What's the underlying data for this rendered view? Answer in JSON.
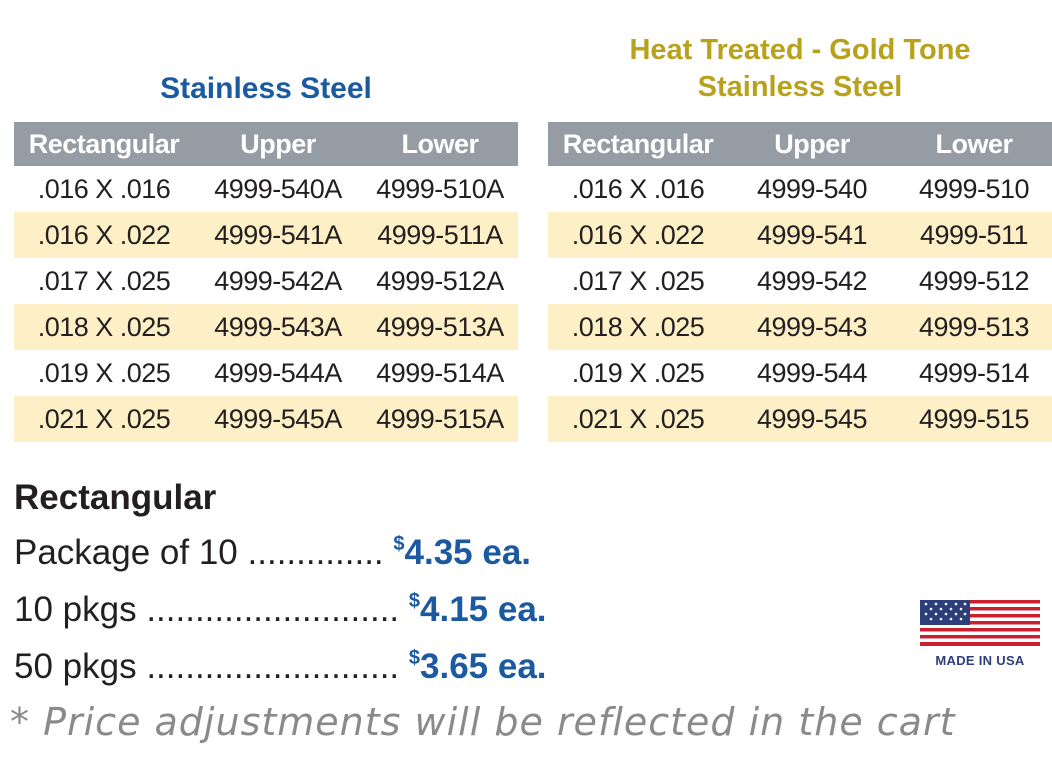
{
  "left_section": {
    "title": "Stainless Steel",
    "headers": [
      "Rectangular",
      "Upper",
      "Lower"
    ],
    "rows": [
      [
        ".016 X .016",
        "4999-540A",
        "4999-510A"
      ],
      [
        ".016 X .022",
        "4999-541A",
        "4999-511A"
      ],
      [
        ".017 X .025",
        "4999-542A",
        "4999-512A"
      ],
      [
        ".018 X .025",
        "4999-543A",
        "4999-513A"
      ],
      [
        ".019 X .025",
        "4999-544A",
        "4999-514A"
      ],
      [
        ".021 X .025",
        "4999-545A",
        "4999-515A"
      ]
    ]
  },
  "right_section": {
    "title_line1": "Heat Treated - Gold Tone",
    "title_line2": "Stainless Steel",
    "headers": [
      "Rectangular",
      "Upper",
      "Lower"
    ],
    "rows": [
      [
        ".016 X .016",
        "4999-540",
        "4999-510"
      ],
      [
        ".016 X .022",
        "4999-541",
        "4999-511"
      ],
      [
        ".017 X .025",
        "4999-542",
        "4999-512"
      ],
      [
        ".018 X .025",
        "4999-543",
        "4999-513"
      ],
      [
        ".019 X .025",
        "4999-544",
        "4999-514"
      ],
      [
        ".021 X .025",
        "4999-545",
        "4999-515"
      ]
    ]
  },
  "pricing": {
    "heading": "Rectangular",
    "tiers": [
      {
        "label": "Package of 10",
        "dots": "..............",
        "currency": "$",
        "price": "4.35 ea."
      },
      {
        "label": "10 pkgs",
        "dots": "..........................",
        "currency": "$",
        "price": "4.15 ea."
      },
      {
        "label": "50 pkgs",
        "dots": "..........................",
        "currency": "$",
        "price": "3.65 ea."
      }
    ]
  },
  "badge": {
    "text": "MADE IN USA"
  },
  "note": "* Price adjustments will be reflected in the cart",
  "colors": {
    "blue": "#1b5aa0",
    "gold": "#b8a21c",
    "header_gray": "#959ca3",
    "row_alt": "#fdf0c6"
  }
}
